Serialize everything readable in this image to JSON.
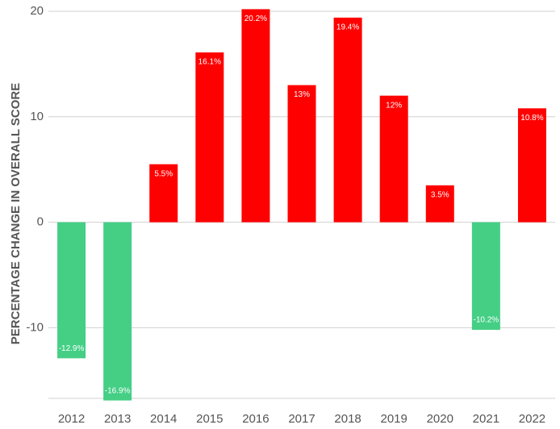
{
  "chart_data": {
    "type": "bar",
    "ylabel": "PERCENTAGE CHANGE IN OVERALL SCORE",
    "categories": [
      "2012",
      "2013",
      "2014",
      "2015",
      "2016",
      "2017",
      "2018",
      "2019",
      "2020",
      "2021",
      "2022"
    ],
    "values": [
      -12.9,
      -16.9,
      5.5,
      16.1,
      20.2,
      13,
      19.4,
      12,
      3.5,
      -10.2,
      10.8
    ],
    "value_labels": [
      "-12.9%",
      "-16.9%",
      "5.5%",
      "16.1%",
      "20.2%",
      "13%",
      "19.4%",
      "12%",
      "3.5%",
      "-10.2%",
      "10.8%"
    ],
    "colors": [
      "#44cf85",
      "#44cf85",
      "#ff0000",
      "#ff0000",
      "#ff0000",
      "#ff0000",
      "#ff0000",
      "#ff0000",
      "#ff0000",
      "#44cf85",
      "#ff0000"
    ],
    "ylim": [
      -16.7,
      20
    ],
    "yticks": [
      -10,
      0,
      10,
      20
    ],
    "grid": true
  }
}
